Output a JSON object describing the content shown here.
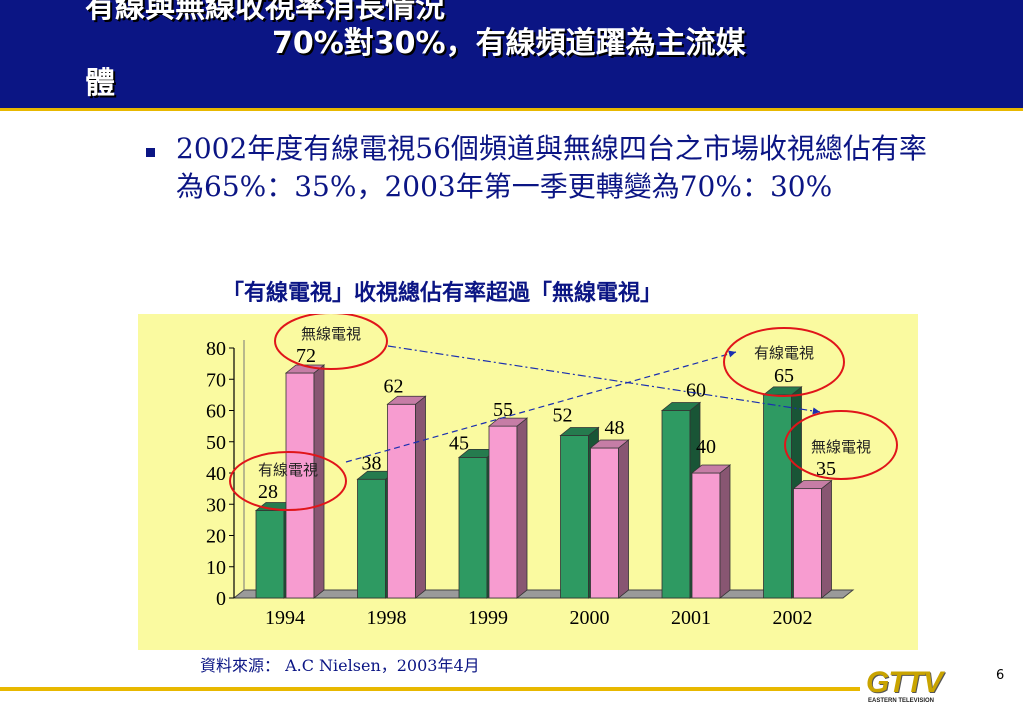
{
  "header": {
    "title_line0": "有線與無線收視率消長情況",
    "title_line1": "70%對30%，有線頻道躍為主流媒",
    "title_line2": "體"
  },
  "bullet": {
    "text": "2002年度有線電視56個頻道與無線四台之市場收視總佔有率為65%：35%，2003年第一季更轉變為70%：30%"
  },
  "chart_title": "「有線電視」收視總佔有率超過「無線電視」",
  "chart_data": {
    "type": "bar",
    "categories": [
      "1994",
      "1998",
      "1999",
      "2000",
      "2001",
      "2002"
    ],
    "series": [
      {
        "name": "有線電視",
        "color": "#2e9a62",
        "values": [
          28,
          38,
          45,
          52,
          60,
          65
        ]
      },
      {
        "name": "無線電視",
        "color": "#f79cd0",
        "values": [
          72,
          62,
          55,
          48,
          40,
          35
        ]
      }
    ],
    "ylim": [
      0,
      80
    ],
    "yticks": [
      "0",
      "10",
      "20",
      "30",
      "40",
      "50",
      "60",
      "70",
      "80"
    ],
    "annotations": [
      {
        "label": "無線電視",
        "value": "72"
      },
      {
        "label": "有線電視",
        "value": "28"
      },
      {
        "label": "有線電視",
        "value": "65"
      },
      {
        "label": "無線電視",
        "value": "35"
      }
    ],
    "background": "#fafaa0"
  },
  "source": "資料來源： A.C Nielsen，2003年4月",
  "logo": {
    "main": "GTTV",
    "sub": "EASTERN TELEVISION"
  },
  "page_number": "6"
}
